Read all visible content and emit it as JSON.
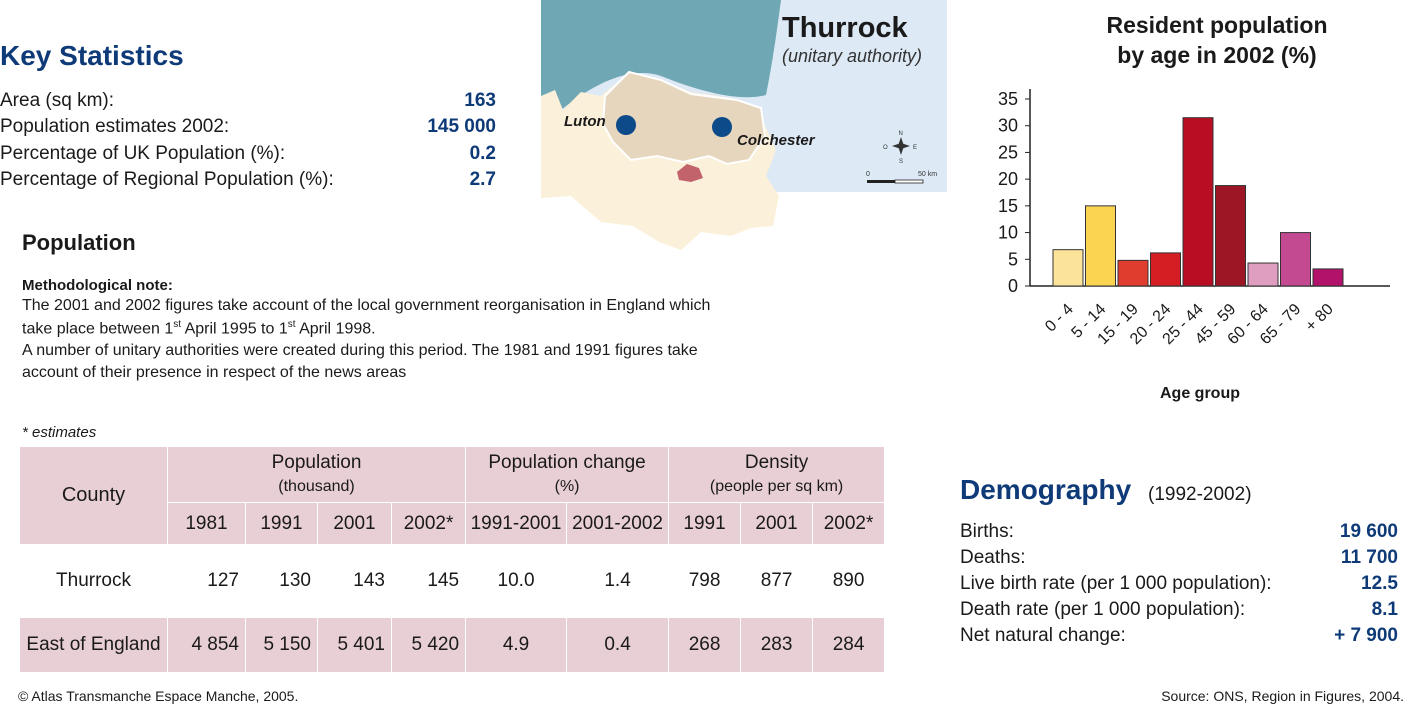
{
  "key_statistics": {
    "title": "Key Statistics",
    "rows": [
      {
        "label": "Area (sq km):",
        "value": "163"
      },
      {
        "label": "Population estimates 2002:",
        "value": "145 000"
      },
      {
        "label": "Percentage of UK Population (%):",
        "value": "0.2"
      },
      {
        "label": "Percentage of Regional Population (%):",
        "value": "2.7"
      }
    ]
  },
  "map": {
    "title": "Thurrock",
    "subtitle": "(unitary authority)",
    "labels": [
      "Luton",
      "Colchester"
    ],
    "scale_start": "0",
    "scale_end": "50 km",
    "compass": {
      "n": "N",
      "s": "S",
      "e": "E",
      "o": "O"
    }
  },
  "population": {
    "title": "Population",
    "note_title": "Methodological note:",
    "note_line1": "The 2001 and 2002 figures take account of the local government reorganisation in England which",
    "note_line2_a": "take place between 1",
    "note_line2_sup1": "st",
    "note_line2_b": " April 1995 to 1",
    "note_line2_sup2": "st",
    "note_line2_c": " April 1998.",
    "note_line3": "A number of unitary authorities were created during this period. The 1981 and 1991 figures take",
    "note_line4": "account of their presence in respect of the news areas",
    "estimates": "* estimates"
  },
  "table": {
    "county_header": "County",
    "groups": [
      {
        "title": "Population",
        "sub": "(thousand)"
      },
      {
        "title": "Population change",
        "sub": "(%)"
      },
      {
        "title": "Density",
        "sub": "(people per sq km)"
      }
    ],
    "columns": [
      "1981",
      "1991",
      "2001",
      "2002*",
      "1991-2001",
      "2001-2002",
      "1991",
      "2001",
      "2002*"
    ],
    "rows": [
      {
        "county": "Thurrock",
        "values": [
          "127",
          "130",
          "143",
          "145",
          "10.0",
          "1.4",
          "798",
          "877",
          "890"
        ]
      },
      {
        "county": "East of England",
        "values": [
          "4 854",
          "5 150",
          "5 401",
          "5 420",
          "4.9",
          "0.4",
          "268",
          "283",
          "284"
        ]
      }
    ]
  },
  "chart_data": {
    "type": "bar",
    "title_line1": "Resident population",
    "title_line2": "by age in 2002 (%)",
    "xlabel": "Age group",
    "ylabel": "",
    "ylim": [
      0,
      35
    ],
    "yticks": [
      0,
      5,
      10,
      15,
      20,
      25,
      30,
      35
    ],
    "categories": [
      "0 - 4",
      "5 - 14",
      "15 - 19",
      "20 - 24",
      "25 - 44",
      "45 - 59",
      "60 - 64",
      "65 - 79",
      "+ 80"
    ],
    "values": [
      6.8,
      15.0,
      4.8,
      6.2,
      31.5,
      18.8,
      4.3,
      10.0,
      3.2
    ],
    "colors": [
      "#fbe49a",
      "#fbd452",
      "#e03d2e",
      "#d51e23",
      "#b90d23",
      "#9d1626",
      "#df9ec0",
      "#c34a90",
      "#b3126b"
    ],
    "grid": false
  },
  "demography": {
    "title": "Demography",
    "period": "(1992-2002)",
    "rows": [
      {
        "label": "Births:",
        "value": "19 600"
      },
      {
        "label": "Deaths:",
        "value": "11 700"
      },
      {
        "label": "Live birth rate (per 1 000 population):",
        "value": "12.5"
      },
      {
        "label": "Death rate (per 1 000 population):",
        "value": "8.1"
      },
      {
        "label": "Net natural change:",
        "value": "+ 7 900"
      }
    ]
  },
  "footer": {
    "copyright": "© Atlas Transmanche Espace Manche, 2005.",
    "source": "Source: ONS, Region in Figures, 2004."
  },
  "colors": {
    "navy": "#0e3a78",
    "table_pink": "#e8cfd5",
    "sea": "#6fa8b4",
    "land": "#fbf0d9",
    "region": "#e6d6bd",
    "marker": "#0c4a8a",
    "thurrock": "#c2626a"
  }
}
